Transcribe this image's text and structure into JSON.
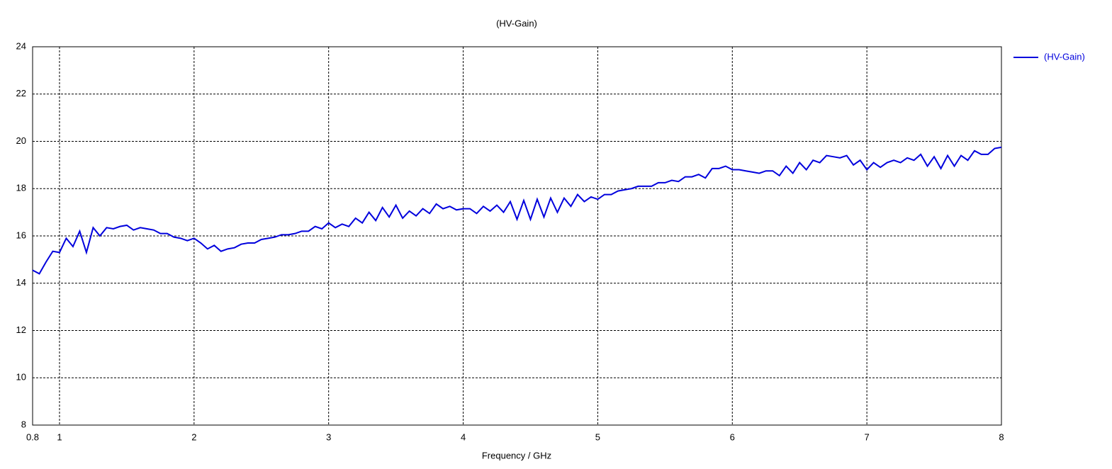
{
  "chart_data": {
    "type": "line",
    "title": "(HV-Gain)",
    "x_label": "Frequency / GHz",
    "x": [
      0.8,
      0.85,
      0.9,
      0.95,
      1.0,
      1.05,
      1.1,
      1.15,
      1.2,
      1.25,
      1.3,
      1.35,
      1.4,
      1.45,
      1.5,
      1.55,
      1.6,
      1.65,
      1.7,
      1.75,
      1.8,
      1.85,
      1.9,
      1.95,
      2.0,
      2.05,
      2.1,
      2.15,
      2.2,
      2.25,
      2.3,
      2.35,
      2.4,
      2.45,
      2.5,
      2.55,
      2.6,
      2.65,
      2.7,
      2.75,
      2.8,
      2.85,
      2.9,
      2.95,
      3.0,
      3.05,
      3.1,
      3.15,
      3.2,
      3.25,
      3.3,
      3.35,
      3.4,
      3.45,
      3.5,
      3.55,
      3.6,
      3.65,
      3.7,
      3.75,
      3.8,
      3.85,
      3.9,
      3.95,
      4.0,
      4.05,
      4.1,
      4.15,
      4.2,
      4.25,
      4.3,
      4.35,
      4.4,
      4.45,
      4.5,
      4.55,
      4.6,
      4.65,
      4.7,
      4.75,
      4.8,
      4.85,
      4.9,
      4.95,
      5.0,
      5.05,
      5.1,
      5.15,
      5.2,
      5.25,
      5.3,
      5.35,
      5.4,
      5.45,
      5.5,
      5.55,
      5.6,
      5.65,
      5.7,
      5.75,
      5.8,
      5.85,
      5.9,
      5.95,
      6.0,
      6.05,
      6.1,
      6.15,
      6.2,
      6.25,
      6.3,
      6.35,
      6.4,
      6.45,
      6.5,
      6.55,
      6.6,
      6.65,
      6.7,
      6.75,
      6.8,
      6.85,
      6.9,
      6.95,
      7.0,
      7.05,
      7.1,
      7.15,
      7.2,
      7.25,
      7.3,
      7.35,
      7.4,
      7.45,
      7.5,
      7.55,
      7.6,
      7.65,
      7.7,
      7.75,
      7.8,
      7.85,
      7.9,
      7.95,
      8.0
    ],
    "series": [
      {
        "name": "(HV-Gain)",
        "color": "#0000dd",
        "values": [
          14.55,
          14.4,
          14.9,
          15.35,
          15.3,
          15.9,
          15.55,
          16.2,
          15.3,
          16.35,
          16.0,
          16.35,
          16.3,
          16.4,
          16.45,
          16.25,
          16.35,
          16.3,
          16.25,
          16.1,
          16.1,
          15.95,
          15.9,
          15.8,
          15.9,
          15.7,
          15.45,
          15.6,
          15.35,
          15.45,
          15.5,
          15.65,
          15.7,
          15.7,
          15.85,
          15.9,
          15.95,
          16.05,
          16.05,
          16.1,
          16.2,
          16.2,
          16.4,
          16.3,
          16.55,
          16.35,
          16.5,
          16.4,
          16.75,
          16.55,
          17.0,
          16.65,
          17.2,
          16.8,
          17.3,
          16.75,
          17.05,
          16.85,
          17.15,
          16.95,
          17.35,
          17.15,
          17.25,
          17.1,
          17.15,
          17.15,
          16.95,
          17.25,
          17.05,
          17.3,
          17.0,
          17.45,
          16.7,
          17.5,
          16.7,
          17.55,
          16.8,
          17.6,
          17.0,
          17.6,
          17.25,
          17.75,
          17.45,
          17.65,
          17.55,
          17.75,
          17.75,
          17.9,
          17.95,
          18.0,
          18.1,
          18.1,
          18.1,
          18.25,
          18.25,
          18.35,
          18.3,
          18.5,
          18.5,
          18.6,
          18.45,
          18.85,
          18.85,
          18.95,
          18.8,
          18.8,
          18.75,
          18.7,
          18.65,
          18.75,
          18.75,
          18.55,
          18.95,
          18.65,
          19.1,
          18.8,
          19.2,
          19.1,
          19.4,
          19.35,
          19.3,
          19.4,
          19.0,
          19.2,
          18.8,
          19.1,
          18.9,
          19.1,
          19.2,
          19.1,
          19.3,
          19.2,
          19.45,
          18.95,
          19.35,
          18.85,
          19.4,
          18.95,
          19.4,
          19.2,
          19.6,
          19.45,
          19.45,
          19.7,
          19.75
        ]
      }
    ],
    "xlim": [
      0.8,
      8
    ],
    "xticks": [
      0.8,
      1,
      2,
      3,
      4,
      5,
      6,
      7,
      8
    ],
    "ylim": [
      8,
      24
    ],
    "yticks": [
      8,
      10,
      12,
      14,
      16,
      18,
      20,
      22,
      24
    ],
    "grid": true,
    "legend": "right"
  }
}
